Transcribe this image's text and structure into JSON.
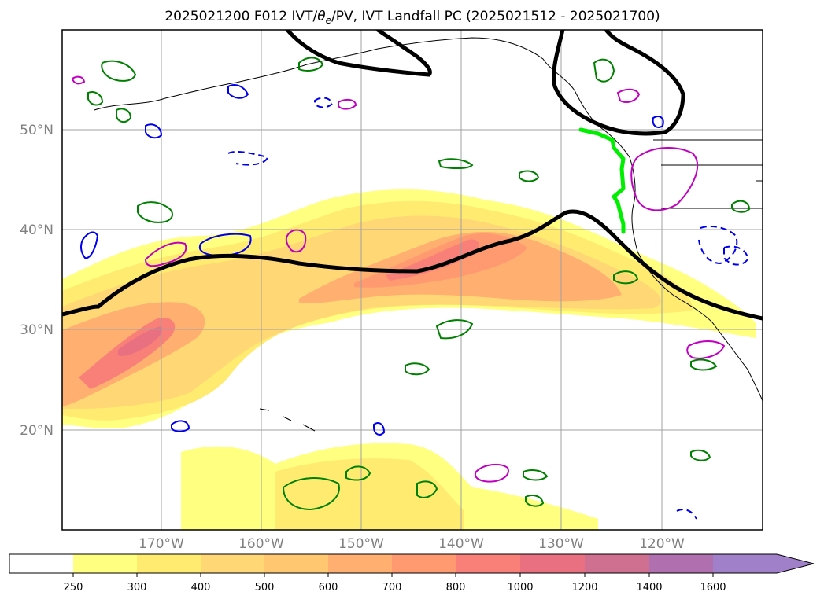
{
  "title_prefix": "2025021200 F012 IVT/",
  "title_theta": "θ",
  "title_sub": "e",
  "title_suffix": "/PV, IVT Landfall PC (2025021512 - 2025021700)",
  "lat_labels": [
    "50°N",
    "40°N",
    "30°N",
    "20°N"
  ],
  "lon_labels": [
    "170°W",
    "160°W",
    "150°W",
    "140°W",
    "130°W",
    "120°W"
  ],
  "colorbar": {
    "ticks": [
      "250",
      "300",
      "400",
      "500",
      "600",
      "700",
      "800",
      "1000",
      "1200",
      "1400",
      "1600"
    ],
    "colors": [
      "#ffffff",
      "#ffff80",
      "#ffeb70",
      "#ffd875",
      "#ffc870",
      "#ffb070",
      "#ff9a70",
      "#f88078",
      "#e87080",
      "#d07090",
      "#b070b0",
      "#a080c8"
    ]
  },
  "colors": {
    "jet_contour": "#000000",
    "landfall_line": "#00ee00",
    "theta_e_contour": "#008000",
    "pv_positive": "#0000ee",
    "pv_magenta": "#c000c0"
  }
}
